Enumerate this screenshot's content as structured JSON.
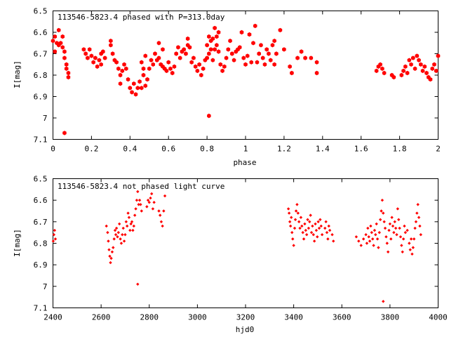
{
  "chart_data": [
    {
      "type": "scatter",
      "title": "113546-5823.4 phased with P=313.0day",
      "xlabel": "phase",
      "ylabel": "I[mag]",
      "xlim": [
        0,
        2
      ],
      "ylim": [
        6.5,
        7.1
      ],
      "y_inverted": true,
      "xticks": [
        0,
        0.2,
        0.4,
        0.6,
        0.8,
        1,
        1.2,
        1.4,
        1.6,
        1.8,
        2
      ],
      "xtick_labels": [
        "0",
        "0.2",
        "0.4",
        "0.6",
        "0.8",
        "1",
        "1.2",
        "1.4",
        "1.6",
        "1.8",
        "2"
      ],
      "yticks": [
        6.5,
        6.6,
        6.7,
        6.8,
        6.9,
        7.0,
        7.1
      ],
      "ytick_labels": [
        "6.5",
        "6.6",
        "6.7",
        "6.8",
        "6.9",
        "7",
        "7.1"
      ],
      "grid": false,
      "color": "#ff0000",
      "marker": "filled-hexagon",
      "points": [
        [
          0.0,
          6.64
        ],
        [
          0.01,
          6.62
        ],
        [
          0.01,
          6.69
        ],
        [
          0.02,
          6.65
        ],
        [
          0.03,
          6.66
        ],
        [
          0.03,
          6.59
        ],
        [
          0.04,
          6.65
        ],
        [
          0.05,
          6.62
        ],
        [
          0.05,
          6.67
        ],
        [
          0.06,
          6.69
        ],
        [
          0.06,
          6.72
        ],
        [
          0.07,
          6.75
        ],
        [
          0.07,
          6.77
        ],
        [
          0.08,
          6.79
        ],
        [
          0.08,
          6.81
        ],
        [
          0.06,
          7.07
        ],
        [
          0.16,
          6.68
        ],
        [
          0.17,
          6.7
        ],
        [
          0.18,
          6.72
        ],
        [
          0.19,
          6.68
        ],
        [
          0.2,
          6.71
        ],
        [
          0.21,
          6.74
        ],
        [
          0.22,
          6.72
        ],
        [
          0.23,
          6.76
        ],
        [
          0.24,
          6.73
        ],
        [
          0.25,
          6.7
        ],
        [
          0.25,
          6.75
        ],
        [
          0.26,
          6.69
        ],
        [
          0.27,
          6.72
        ],
        [
          0.3,
          6.64
        ],
        [
          0.3,
          6.66
        ],
        [
          0.31,
          6.7
        ],
        [
          0.32,
          6.73
        ],
        [
          0.33,
          6.74
        ],
        [
          0.34,
          6.77
        ],
        [
          0.35,
          6.8
        ],
        [
          0.35,
          6.84
        ],
        [
          0.36,
          6.78
        ],
        [
          0.37,
          6.75
        ],
        [
          0.38,
          6.77
        ],
        [
          0.39,
          6.82
        ],
        [
          0.4,
          6.86
        ],
        [
          0.41,
          6.88
        ],
        [
          0.42,
          6.84
        ],
        [
          0.43,
          6.89
        ],
        [
          0.44,
          6.86
        ],
        [
          0.45,
          6.83
        ],
        [
          0.46,
          6.86
        ],
        [
          0.47,
          6.8
        ],
        [
          0.48,
          6.85
        ],
        [
          0.49,
          6.82
        ],
        [
          0.46,
          6.74
        ],
        [
          0.47,
          6.77
        ],
        [
          0.48,
          6.71
        ],
        [
          0.5,
          6.77
        ],
        [
          0.51,
          6.73
        ],
        [
          0.52,
          6.75
        ],
        [
          0.53,
          6.7
        ],
        [
          0.54,
          6.73
        ],
        [
          0.55,
          6.72
        ],
        [
          0.56,
          6.75
        ],
        [
          0.57,
          6.76
        ],
        [
          0.58,
          6.77
        ],
        [
          0.59,
          6.78
        ],
        [
          0.55,
          6.65
        ],
        [
          0.57,
          6.68
        ],
        [
          0.6,
          6.74
        ],
        [
          0.61,
          6.77
        ],
        [
          0.62,
          6.79
        ],
        [
          0.63,
          6.76
        ],
        [
          0.64,
          6.7
        ],
        [
          0.65,
          6.67
        ],
        [
          0.66,
          6.72
        ],
        [
          0.67,
          6.69
        ],
        [
          0.68,
          6.68
        ],
        [
          0.69,
          6.7
        ],
        [
          0.7,
          6.66
        ],
        [
          0.7,
          6.63
        ],
        [
          0.71,
          6.67
        ],
        [
          0.72,
          6.74
        ],
        [
          0.73,
          6.72
        ],
        [
          0.74,
          6.76
        ],
        [
          0.75,
          6.78
        ],
        [
          0.76,
          6.75
        ],
        [
          0.77,
          6.8
        ],
        [
          0.78,
          6.77
        ],
        [
          0.79,
          6.73
        ],
        [
          0.8,
          6.72
        ],
        [
          0.8,
          6.66
        ],
        [
          0.81,
          6.7
        ],
        [
          0.81,
          6.62
        ],
        [
          0.82,
          6.64
        ],
        [
          0.82,
          6.68
        ],
        [
          0.83,
          6.63
        ],
        [
          0.83,
          6.73
        ],
        [
          0.84,
          6.58
        ],
        [
          0.84,
          6.68
        ],
        [
          0.85,
          6.62
        ],
        [
          0.85,
          6.66
        ],
        [
          0.86,
          6.69
        ],
        [
          0.86,
          6.6
        ],
        [
          0.81,
          6.99
        ],
        [
          0.87,
          6.75
        ],
        [
          0.88,
          6.78
        ],
        [
          0.89,
          6.76
        ],
        [
          0.9,
          6.72
        ],
        [
          0.91,
          6.68
        ],
        [
          0.92,
          6.64
        ],
        [
          0.93,
          6.7
        ],
        [
          0.94,
          6.73
        ],
        [
          0.95,
          6.69
        ],
        [
          0.96,
          6.68
        ],
        [
          0.97,
          6.67
        ],
        [
          0.98,
          6.6
        ],
        [
          0.99,
          6.72
        ],
        [
          1.0,
          6.75
        ],
        [
          1.01,
          6.71
        ],
        [
          1.02,
          6.61
        ],
        [
          1.03,
          6.74
        ],
        [
          1.04,
          6.65
        ],
        [
          1.05,
          6.57
        ],
        [
          1.06,
          6.74
        ],
        [
          1.07,
          6.7
        ],
        [
          1.08,
          6.66
        ],
        [
          1.09,
          6.72
        ],
        [
          1.1,
          6.75
        ],
        [
          1.11,
          6.68
        ],
        [
          1.12,
          6.7
        ],
        [
          1.13,
          6.73
        ],
        [
          1.14,
          6.66
        ],
        [
          1.15,
          6.64
        ],
        [
          1.15,
          6.75
        ],
        [
          1.16,
          6.7
        ],
        [
          1.18,
          6.59
        ],
        [
          1.2,
          6.68
        ],
        [
          1.23,
          6.76
        ],
        [
          1.24,
          6.79
        ],
        [
          1.27,
          6.72
        ],
        [
          1.29,
          6.69
        ],
        [
          1.31,
          6.72
        ],
        [
          1.34,
          6.72
        ],
        [
          1.37,
          6.74
        ],
        [
          1.37,
          6.79
        ],
        [
          1.68,
          6.78
        ],
        [
          1.69,
          6.76
        ],
        [
          1.7,
          6.75
        ],
        [
          1.71,
          6.77
        ],
        [
          1.72,
          6.79
        ],
        [
          1.76,
          6.8
        ],
        [
          1.77,
          6.81
        ],
        [
          1.81,
          6.8
        ],
        [
          1.82,
          6.78
        ],
        [
          1.83,
          6.76
        ],
        [
          1.84,
          6.79
        ],
        [
          1.85,
          6.73
        ],
        [
          1.86,
          6.75
        ],
        [
          1.87,
          6.72
        ],
        [
          1.88,
          6.77
        ],
        [
          1.89,
          6.71
        ],
        [
          1.9,
          6.73
        ],
        [
          1.91,
          6.75
        ],
        [
          1.92,
          6.78
        ],
        [
          1.93,
          6.76
        ],
        [
          1.94,
          6.79
        ],
        [
          1.95,
          6.81
        ],
        [
          1.96,
          6.82
        ],
        [
          1.97,
          6.77
        ],
        [
          1.98,
          6.75
        ],
        [
          1.99,
          6.78
        ],
        [
          2.0,
          6.71
        ]
      ]
    },
    {
      "type": "scatter",
      "title": "113546-5823.4 not phased light curve",
      "xlabel": "hjd0",
      "ylabel": "I[mag]",
      "xlim": [
        2400,
        4000
      ],
      "ylim": [
        6.5,
        7.1
      ],
      "y_inverted": true,
      "xticks": [
        2400,
        2600,
        2800,
        3000,
        3200,
        3400,
        3600,
        3800,
        4000
      ],
      "xtick_labels": [
        "2400",
        "2600",
        "2800",
        "3000",
        "3200",
        "3400",
        "3600",
        "3800",
        "4000"
      ],
      "yticks": [
        6.5,
        6.6,
        6.7,
        6.8,
        6.9,
        7.0,
        7.1
      ],
      "ytick_labels": [
        "6.5",
        "6.6",
        "6.7",
        "6.8",
        "6.9",
        "7",
        "7.1"
      ],
      "grid": false,
      "color": "#ff0000",
      "marker": "small-diamond",
      "points": [
        [
          2401,
          6.79
        ],
        [
          2404,
          6.76
        ],
        [
          2407,
          6.74
        ],
        [
          2410,
          6.78
        ],
        [
          2622,
          6.72
        ],
        [
          2627,
          6.75
        ],
        [
          2630,
          6.79
        ],
        [
          2633,
          6.83
        ],
        [
          2636,
          6.86
        ],
        [
          2639,
          6.89
        ],
        [
          2642,
          6.87
        ],
        [
          2646,
          6.84
        ],
        [
          2650,
          6.82
        ],
        [
          2654,
          6.78
        ],
        [
          2658,
          6.74
        ],
        [
          2661,
          6.76
        ],
        [
          2664,
          6.73
        ],
        [
          2668,
          6.77
        ],
        [
          2672,
          6.75
        ],
        [
          2676,
          6.71
        ],
        [
          2680,
          6.78
        ],
        [
          2684,
          6.8
        ],
        [
          2688,
          6.76
        ],
        [
          2692,
          6.73
        ],
        [
          2696,
          6.79
        ],
        [
          2700,
          6.76
        ],
        [
          2704,
          6.7
        ],
        [
          2708,
          6.72
        ],
        [
          2712,
          6.66
        ],
        [
          2716,
          6.68
        ],
        [
          2720,
          6.74
        ],
        [
          2724,
          6.71
        ],
        [
          2728,
          6.7
        ],
        [
          2732,
          6.74
        ],
        [
          2736,
          6.72
        ],
        [
          2740,
          6.67
        ],
        [
          2744,
          6.64
        ],
        [
          2748,
          6.6
        ],
        [
          2752,
          6.56
        ],
        [
          2756,
          6.62
        ],
        [
          2760,
          6.6
        ],
        [
          2764,
          6.62
        ],
        [
          2768,
          6.65
        ],
        [
          2790,
          6.63
        ],
        [
          2795,
          6.6
        ],
        [
          2800,
          6.61
        ],
        [
          2805,
          6.59
        ],
        [
          2810,
          6.57
        ],
        [
          2815,
          6.64
        ],
        [
          2820,
          6.61
        ],
        [
          2840,
          6.65
        ],
        [
          2845,
          6.67
        ],
        [
          2850,
          6.7
        ],
        [
          2855,
          6.72
        ],
        [
          2860,
          6.65
        ],
        [
          2865,
          6.58
        ],
        [
          2752,
          6.99
        ],
        [
          3378,
          6.64
        ],
        [
          3381,
          6.66
        ],
        [
          3384,
          6.7
        ],
        [
          3387,
          6.72
        ],
        [
          3390,
          6.68
        ],
        [
          3393,
          6.75
        ],
        [
          3396,
          6.78
        ],
        [
          3400,
          6.81
        ],
        [
          3404,
          6.73
        ],
        [
          3407,
          6.69
        ],
        [
          3410,
          6.65
        ],
        [
          3414,
          6.62
        ],
        [
          3418,
          6.66
        ],
        [
          3422,
          6.7
        ],
        [
          3426,
          6.73
        ],
        [
          3430,
          6.68
        ],
        [
          3434,
          6.72
        ],
        [
          3438,
          6.75
        ],
        [
          3442,
          6.78
        ],
        [
          3446,
          6.71
        ],
        [
          3450,
          6.74
        ],
        [
          3454,
          6.76
        ],
        [
          3458,
          6.69
        ],
        [
          3462,
          6.73
        ],
        [
          3466,
          6.7
        ],
        [
          3470,
          6.67
        ],
        [
          3474,
          6.75
        ],
        [
          3478,
          6.72
        ],
        [
          3482,
          6.76
        ],
        [
          3486,
          6.79
        ],
        [
          3490,
          6.71
        ],
        [
          3494,
          6.74
        ],
        [
          3498,
          6.77
        ],
        [
          3502,
          6.7
        ],
        [
          3506,
          6.73
        ],
        [
          3510,
          6.69
        ],
        [
          3514,
          6.72
        ],
        [
          3518,
          6.76
        ],
        [
          3530,
          6.73
        ],
        [
          3534,
          6.7
        ],
        [
          3538,
          6.75
        ],
        [
          3542,
          6.78
        ],
        [
          3546,
          6.72
        ],
        [
          3550,
          6.74
        ],
        [
          3560,
          6.76
        ],
        [
          3565,
          6.79
        ],
        [
          3660,
          6.77
        ],
        [
          3670,
          6.79
        ],
        [
          3680,
          6.81
        ],
        [
          3690,
          6.78
        ],
        [
          3700,
          6.76
        ],
        [
          3704,
          6.8
        ],
        [
          3708,
          6.73
        ],
        [
          3712,
          6.77
        ],
        [
          3716,
          6.79
        ],
        [
          3720,
          6.72
        ],
        [
          3724,
          6.75
        ],
        [
          3728,
          6.78
        ],
        [
          3732,
          6.81
        ],
        [
          3736,
          6.74
        ],
        [
          3740,
          6.76
        ],
        [
          3744,
          6.71
        ],
        [
          3748,
          6.78
        ],
        [
          3752,
          6.82
        ],
        [
          3756,
          6.75
        ],
        [
          3760,
          6.69
        ],
        [
          3764,
          6.65
        ],
        [
          3768,
          6.6
        ],
        [
          3772,
          6.66
        ],
        [
          3776,
          6.7
        ],
        [
          3780,
          6.73
        ],
        [
          3784,
          6.77
        ],
        [
          3788,
          6.8
        ],
        [
          3792,
          6.84
        ],
        [
          3796,
          6.74
        ],
        [
          3800,
          6.71
        ],
        [
          3804,
          6.78
        ],
        [
          3808,
          6.68
        ],
        [
          3812,
          6.72
        ],
        [
          3816,
          6.75
        ],
        [
          3820,
          6.7
        ],
        [
          3824,
          6.73
        ],
        [
          3828,
          6.76
        ],
        [
          3832,
          6.64
        ],
        [
          3836,
          6.69
        ],
        [
          3840,
          6.73
        ],
        [
          3844,
          6.77
        ],
        [
          3848,
          6.81
        ],
        [
          3852,
          6.84
        ],
        [
          3856,
          6.78
        ],
        [
          3860,
          6.72
        ],
        [
          3864,
          6.75
        ],
        [
          3872,
          6.74
        ],
        [
          3880,
          6.8
        ],
        [
          3884,
          6.83
        ],
        [
          3888,
          6.78
        ],
        [
          3892,
          6.85
        ],
        [
          3896,
          6.82
        ],
        [
          3900,
          6.78
        ],
        [
          3904,
          6.73
        ],
        [
          3908,
          6.7
        ],
        [
          3912,
          6.66
        ],
        [
          3916,
          6.62
        ],
        [
          3920,
          6.68
        ],
        [
          3924,
          6.72
        ],
        [
          3928,
          6.76
        ],
        [
          3772,
          7.07
        ]
      ]
    }
  ]
}
